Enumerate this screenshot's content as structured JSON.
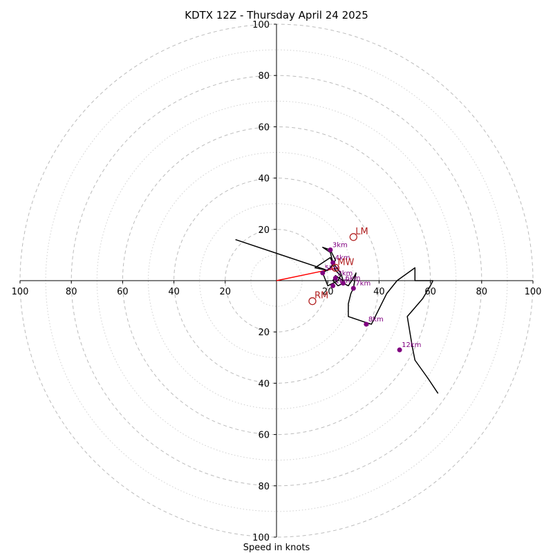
{
  "chart_data": {
    "type": "hodograph",
    "title": "KDTX 12Z - Thursday April 24 2025",
    "xlabel": "Speed in knots",
    "ylabel": "",
    "xlim": [
      -100,
      100
    ],
    "ylim": [
      -100,
      100
    ],
    "tick_values": [
      20,
      40,
      60,
      80,
      100
    ],
    "x_tick_labels": [
      "100",
      "80",
      "60",
      "40",
      "20",
      "20",
      "40",
      "60",
      "80",
      "100"
    ],
    "y_tick_labels": [
      "100",
      "80",
      "60",
      "40",
      "20",
      "20",
      "40",
      "60",
      "80",
      "100"
    ],
    "rings_major": [
      20,
      40,
      60,
      80,
      100
    ],
    "rings_minor": [
      10,
      30,
      50,
      70,
      90
    ],
    "colors": {
      "trace": "#000000",
      "markers": "#800080",
      "storm_motion": "#b22222",
      "bunkers_vector": "#ff0000",
      "grid": "#bbbbbb"
    },
    "trace": [
      [
        -16,
        16
      ],
      [
        20,
        4
      ],
      [
        15,
        5
      ],
      [
        21,
        9
      ],
      [
        23,
        4
      ],
      [
        25,
        2
      ],
      [
        24,
        0
      ],
      [
        20,
        -2
      ],
      [
        18,
        3
      ],
      [
        21,
        5
      ],
      [
        23,
        8
      ],
      [
        22,
        10
      ],
      [
        21,
        12
      ],
      [
        18,
        13
      ],
      [
        21,
        11
      ],
      [
        22,
        7
      ],
      [
        25,
        3
      ],
      [
        26,
        0
      ],
      [
        23,
        2
      ],
      [
        22,
        0
      ],
      [
        24,
        -2
      ],
      [
        26,
        -1
      ],
      [
        28,
        -2
      ],
      [
        30,
        1
      ],
      [
        31,
        3
      ],
      [
        30,
        -3
      ],
      [
        29,
        -5
      ],
      [
        28,
        -9
      ],
      [
        28,
        -14
      ],
      [
        34,
        -16
      ],
      [
        37,
        -17
      ],
      [
        40,
        -11
      ],
      [
        43,
        -5
      ],
      [
        47,
        0
      ],
      [
        54,
        5
      ],
      [
        54,
        0
      ],
      [
        61,
        0
      ],
      [
        60,
        -2
      ],
      [
        57,
        -7
      ],
      [
        51,
        -14
      ],
      [
        52,
        -20
      ],
      [
        53,
        -26
      ],
      [
        54,
        -31
      ],
      [
        59,
        -38
      ],
      [
        63,
        -44
      ]
    ],
    "height_markers": [
      {
        "label": "1km",
        "u": 22,
        "v": -2
      },
      {
        "label": "2km",
        "u": 23,
        "v": 1
      },
      {
        "label": "3km",
        "u": 21,
        "v": 12
      },
      {
        "label": "4km",
        "u": 22,
        "v": 7
      },
      {
        "label": "5km",
        "u": 18,
        "v": 3
      },
      {
        "label": "6km",
        "u": 26,
        "v": -1
      },
      {
        "label": "7km",
        "u": 30,
        "v": -3
      },
      {
        "label": "8km",
        "u": 35,
        "v": -17
      },
      {
        "label": "12km",
        "u": 48,
        "v": -27
      }
    ],
    "storm_motions": [
      {
        "label": "LM",
        "u": 30,
        "v": 17
      },
      {
        "label": "MW",
        "u": 23,
        "v": 5
      },
      {
        "label": "RM",
        "u": 14,
        "v": -8
      }
    ],
    "bunkers_vector": {
      "from": [
        0,
        0
      ],
      "to": [
        24,
        5
      ]
    }
  }
}
